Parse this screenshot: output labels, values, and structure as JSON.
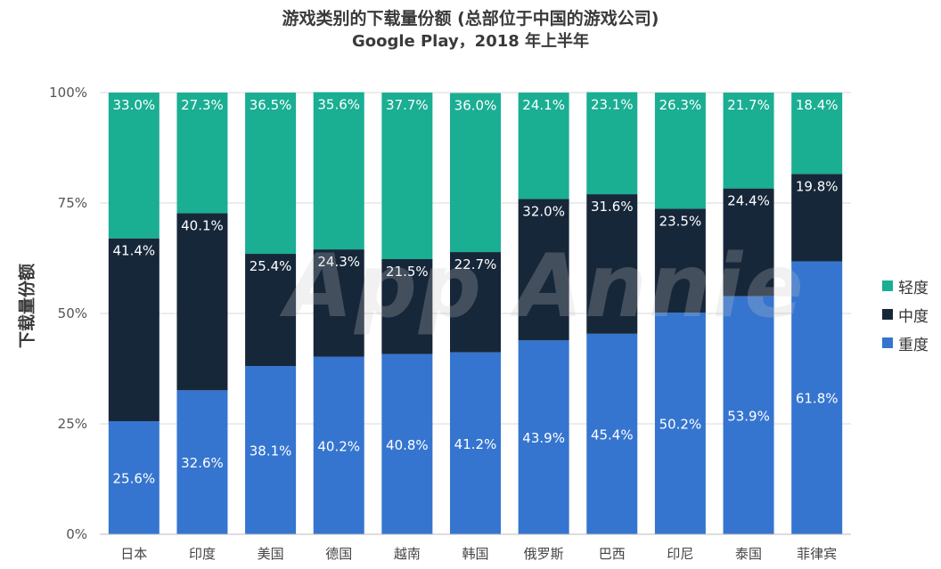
{
  "chart_data": {
    "type": "bar",
    "stacked": true,
    "title": "游戏类别的下载量份额 (总部位于中国的游戏公司)",
    "subtitle": "Google Play，2018 年上半年",
    "xlabel": "",
    "ylabel": "下载量份额",
    "ylim": [
      0,
      100
    ],
    "yticks": [
      "0%",
      "25%",
      "50%",
      "75%",
      "100%"
    ],
    "categories": [
      "日本",
      "印度",
      "美国",
      "德国",
      "越南",
      "韩国",
      "俄罗斯",
      "巴西",
      "印尼",
      "泰国",
      "菲律宾"
    ],
    "series": [
      {
        "name": "重度",
        "color": "#3575cf",
        "values": [
          25.6,
          32.6,
          38.1,
          40.2,
          40.8,
          41.2,
          43.9,
          45.4,
          50.2,
          53.9,
          61.8
        ]
      },
      {
        "name": "中度",
        "color": "#17273a",
        "values": [
          41.4,
          40.1,
          25.4,
          24.3,
          21.5,
          22.7,
          32.0,
          31.6,
          23.5,
          24.4,
          19.8
        ]
      },
      {
        "name": "轻度",
        "color": "#1aae93",
        "values": [
          33.0,
          27.3,
          36.5,
          35.6,
          37.7,
          36.0,
          24.1,
          23.1,
          26.3,
          21.7,
          18.4
        ]
      }
    ],
    "legend_position": "right",
    "grid": true,
    "watermark": "App Annie"
  }
}
